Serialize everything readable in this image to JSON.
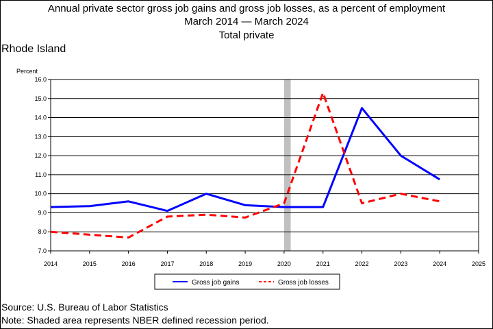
{
  "title_line1": "Annual private sector gross job gains and gross job losses, as a percent of employment",
  "title_line2": "March 2014 — March 2024",
  "title_line3": "Total private",
  "state": "Rhode Island",
  "footer_source": "Source: U.S. Bureau of Labor Statistics",
  "footer_note": "Note: Shaded area represents NBER defined recession period.",
  "chart_data": {
    "type": "line",
    "ylabel": "Percent",
    "xlim": [
      2014,
      2025
    ],
    "ylim": [
      7.0,
      16.0
    ],
    "x_ticks": [
      "2014",
      "2015",
      "2016",
      "2017",
      "2018",
      "2019",
      "2020",
      "2021",
      "2022",
      "2023",
      "2024",
      "2025"
    ],
    "y_ticks": [
      "7.0",
      "8.0",
      "9.0",
      "10.0",
      "11.0",
      "12.0",
      "13.0",
      "14.0",
      "15.0",
      "16.0"
    ],
    "grid": "horizontal",
    "recession": [
      2020.0,
      2020.17
    ],
    "legend_position": "bottom-center",
    "x": [
      2014,
      2015,
      2016,
      2017,
      2018,
      2019,
      2020,
      2021,
      2022,
      2023,
      2024
    ],
    "series": [
      {
        "name": "Gross job gains",
        "color": "#0000ff",
        "style": "solid",
        "values": [
          9.3,
          9.35,
          9.6,
          9.1,
          10.0,
          9.4,
          9.3,
          9.3,
          14.5,
          12.0,
          10.75
        ]
      },
      {
        "name": "Gross job losses",
        "color": "#ff0000",
        "style": "dashed",
        "values": [
          8.0,
          7.85,
          7.7,
          8.8,
          8.9,
          8.75,
          9.5,
          15.3,
          9.5,
          10.0,
          9.6
        ]
      }
    ]
  }
}
